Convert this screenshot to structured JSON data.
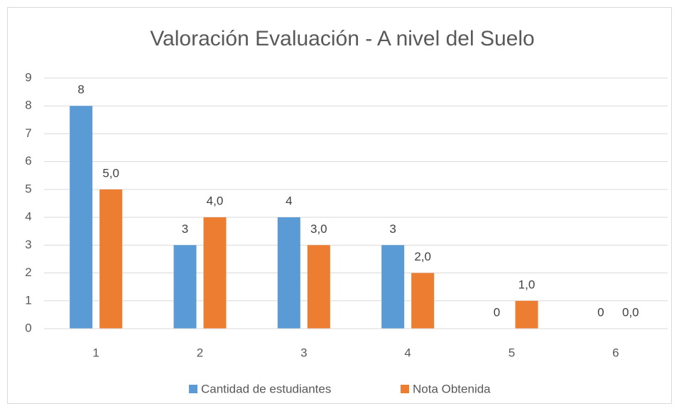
{
  "chart_data": {
    "type": "bar",
    "title": "Valoración Evaluación - A nivel del Suelo",
    "categories": [
      "1",
      "2",
      "3",
      "4",
      "5",
      "6"
    ],
    "series": [
      {
        "name": "Cantidad de estudiantes",
        "color": "#5b9bd5",
        "values": [
          8,
          3,
          4,
          3,
          0,
          0
        ]
      },
      {
        "name": "Nota Obtenida",
        "color": "#ed7d31",
        "values": [
          5,
          4,
          3,
          2,
          1,
          0
        ],
        "value_labels": [
          "5,0",
          "4,0",
          "3,0",
          "2,0",
          "1,0",
          "0,0"
        ]
      }
    ],
    "ylim": [
      0,
      9
    ],
    "yticks": [
      0,
      1,
      2,
      3,
      4,
      5,
      6,
      7,
      8,
      9
    ],
    "grid": true,
    "legend": "bottom"
  }
}
